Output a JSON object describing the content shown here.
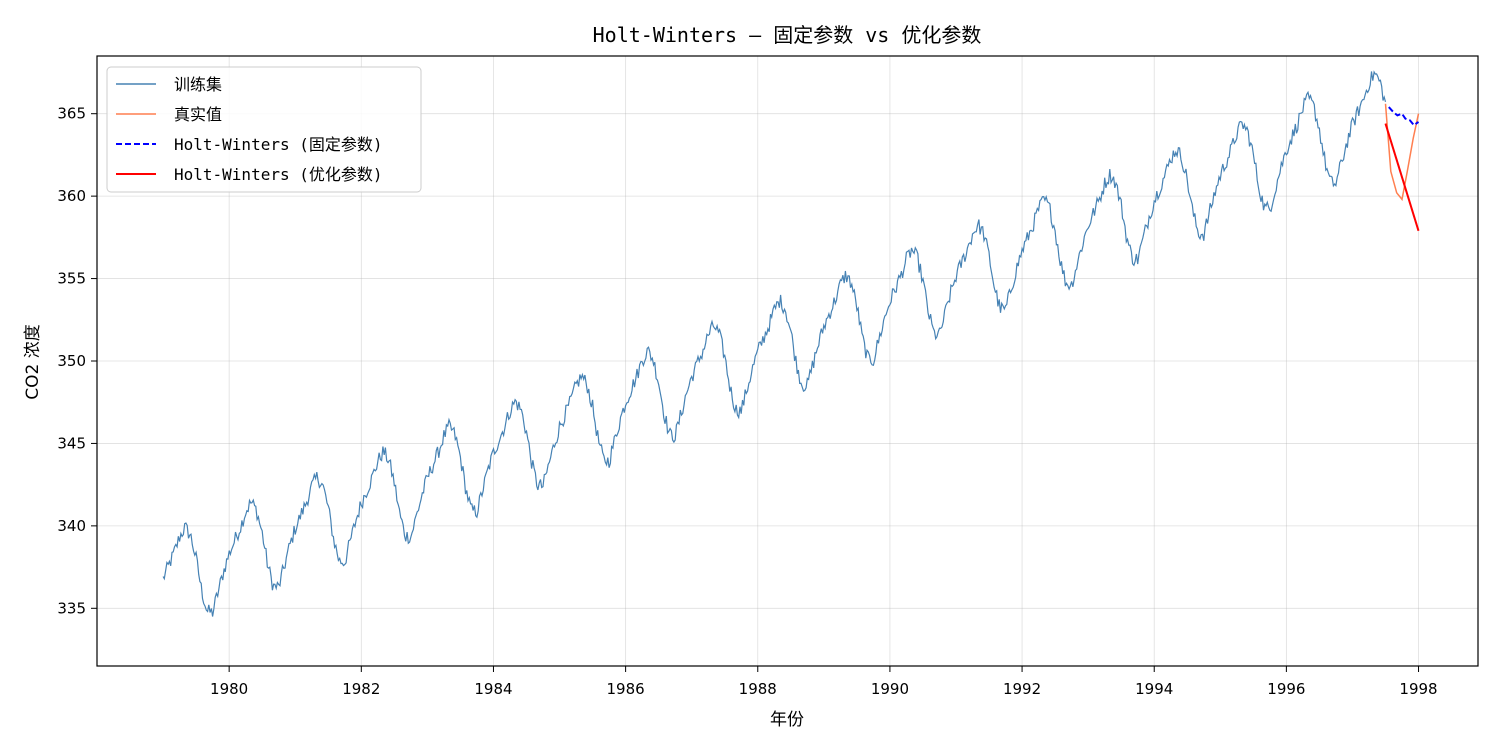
{
  "chart_data": {
    "type": "line",
    "title": "Holt-Winters — 固定参数 vs 优化参数",
    "xlabel": "年份",
    "ylabel": "CO2 浓度",
    "xlim": [
      1978.0,
      1998.9
    ],
    "ylim": [
      331.5,
      368.5
    ],
    "xticks": [
      1980,
      1982,
      1984,
      1986,
      1988,
      1990,
      1992,
      1994,
      1996,
      1998
    ],
    "yticks": [
      335,
      340,
      345,
      350,
      355,
      360,
      365
    ],
    "grid": true,
    "legend_position": "top-left",
    "series": [
      {
        "name": "训练集",
        "color": "#4682b4",
        "style": "solid",
        "trend_start": 336.6,
        "trend_per_year": 1.53,
        "seasonal_amplitude": 3.0,
        "x_range": [
          1979.0,
          1997.5
        ]
      },
      {
        "name": "真实值",
        "color": "#ff7f50",
        "style": "solid",
        "x": [
          1997.5,
          1997.58,
          1997.67,
          1997.75,
          1997.83,
          1997.92,
          1998.0
        ],
        "y": [
          365.6,
          361.5,
          360.2,
          359.8,
          361.5,
          363.5,
          365.0
        ]
      },
      {
        "name": "Holt-Winters (固定参数)",
        "color": "#0000ff",
        "style": "dashed",
        "x": [
          1997.55,
          1997.62,
          1997.68,
          1997.75,
          1997.8,
          1997.87,
          1997.93,
          1998.0
        ],
        "y": [
          365.4,
          365.1,
          364.9,
          365.0,
          364.7,
          364.6,
          364.3,
          364.5
        ]
      },
      {
        "name": "Holt-Winters (优化参数)",
        "color": "#ff0000",
        "style": "solid",
        "x": [
          1997.5,
          1998.0
        ],
        "y": [
          364.4,
          357.9
        ]
      }
    ]
  }
}
